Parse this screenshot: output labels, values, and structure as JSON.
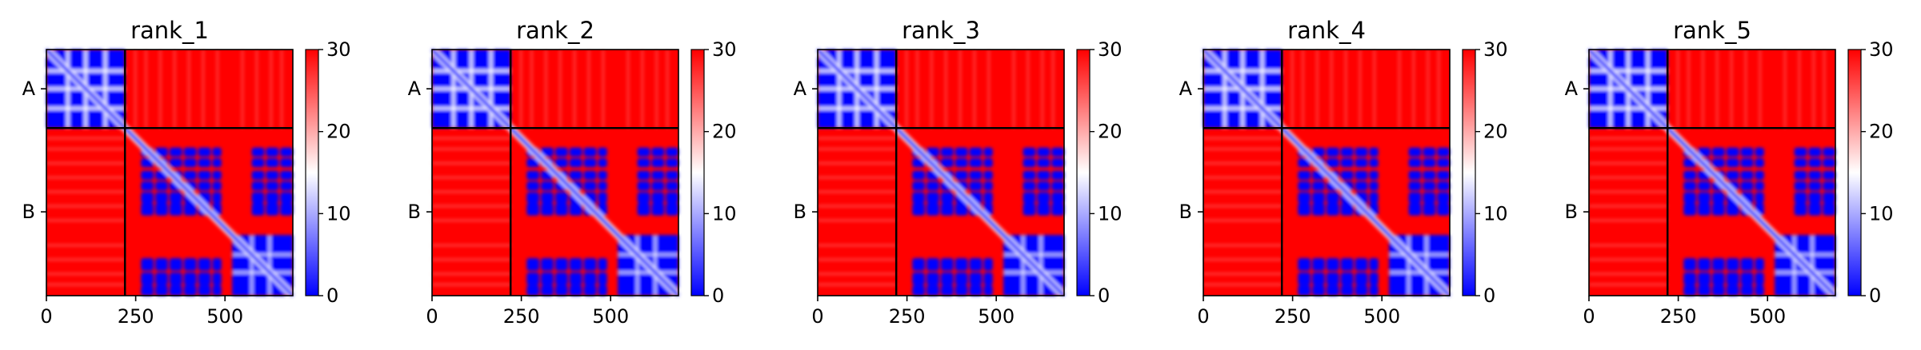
{
  "figure": {
    "background": "#ffffff"
  },
  "chart_data": [
    {
      "type": "heatmap",
      "title": "rank_1",
      "x_ticks": [
        0,
        250,
        500
      ],
      "y_tick_labels": [
        "A",
        "B"
      ],
      "chain_lengths": [
        220,
        470
      ],
      "xlim": [
        0,
        690
      ],
      "ylim": [
        0,
        690
      ],
      "colorbar": {
        "ticks": [
          0,
          10,
          20,
          30
        ],
        "range": [
          0,
          30
        ],
        "colormap": "bwr",
        "colors": [
          "#0000ff",
          "#ffffff",
          "#ff0000"
        ]
      },
      "domain_blocks_blue": [
        [
          0,
          220
        ],
        [
          520,
          690
        ]
      ],
      "diagonal": "low values (blue)"
    },
    {
      "type": "heatmap",
      "title": "rank_2",
      "x_ticks": [
        0,
        250,
        500
      ],
      "y_tick_labels": [
        "A",
        "B"
      ],
      "chain_lengths": [
        220,
        470
      ],
      "xlim": [
        0,
        690
      ],
      "ylim": [
        0,
        690
      ],
      "colorbar": {
        "ticks": [
          0,
          10,
          20,
          30
        ],
        "range": [
          0,
          30
        ],
        "colormap": "bwr",
        "colors": [
          "#0000ff",
          "#ffffff",
          "#ff0000"
        ]
      },
      "domain_blocks_blue": [
        [
          0,
          220
        ],
        [
          520,
          690
        ]
      ],
      "diagonal": "low values (blue)"
    },
    {
      "type": "heatmap",
      "title": "rank_3",
      "x_ticks": [
        0,
        250,
        500
      ],
      "y_tick_labels": [
        "A",
        "B"
      ],
      "chain_lengths": [
        220,
        470
      ],
      "xlim": [
        0,
        690
      ],
      "ylim": [
        0,
        690
      ],
      "colorbar": {
        "ticks": [
          0,
          10,
          20,
          30
        ],
        "range": [
          0,
          30
        ],
        "colormap": "bwr",
        "colors": [
          "#0000ff",
          "#ffffff",
          "#ff0000"
        ]
      },
      "domain_blocks_blue": [
        [
          0,
          220
        ],
        [
          520,
          690
        ]
      ],
      "diagonal": "low values (blue)"
    },
    {
      "type": "heatmap",
      "title": "rank_4",
      "x_ticks": [
        0,
        250,
        500
      ],
      "y_tick_labels": [
        "A",
        "B"
      ],
      "chain_lengths": [
        220,
        470
      ],
      "xlim": [
        0,
        690
      ],
      "ylim": [
        0,
        690
      ],
      "colorbar": {
        "ticks": [
          0,
          10,
          20,
          30
        ],
        "range": [
          0,
          30
        ],
        "colormap": "bwr",
        "colors": [
          "#0000ff",
          "#ffffff",
          "#ff0000"
        ]
      },
      "domain_blocks_blue": [
        [
          0,
          220
        ],
        [
          520,
          690
        ]
      ],
      "diagonal": "low values (blue)"
    },
    {
      "type": "heatmap",
      "title": "rank_5",
      "x_ticks": [
        0,
        250,
        500
      ],
      "y_tick_labels": [
        "A",
        "B"
      ],
      "chain_lengths": [
        220,
        470
      ],
      "xlim": [
        0,
        690
      ],
      "ylim": [
        0,
        690
      ],
      "colorbar": {
        "ticks": [
          0,
          10,
          20,
          30
        ],
        "range": [
          0,
          30
        ],
        "colormap": "bwr",
        "colors": [
          "#0000ff",
          "#ffffff",
          "#ff0000"
        ]
      },
      "domain_blocks_blue": [
        [
          0,
          220
        ],
        [
          520,
          690
        ]
      ],
      "diagonal": "low values (blue)"
    }
  ]
}
